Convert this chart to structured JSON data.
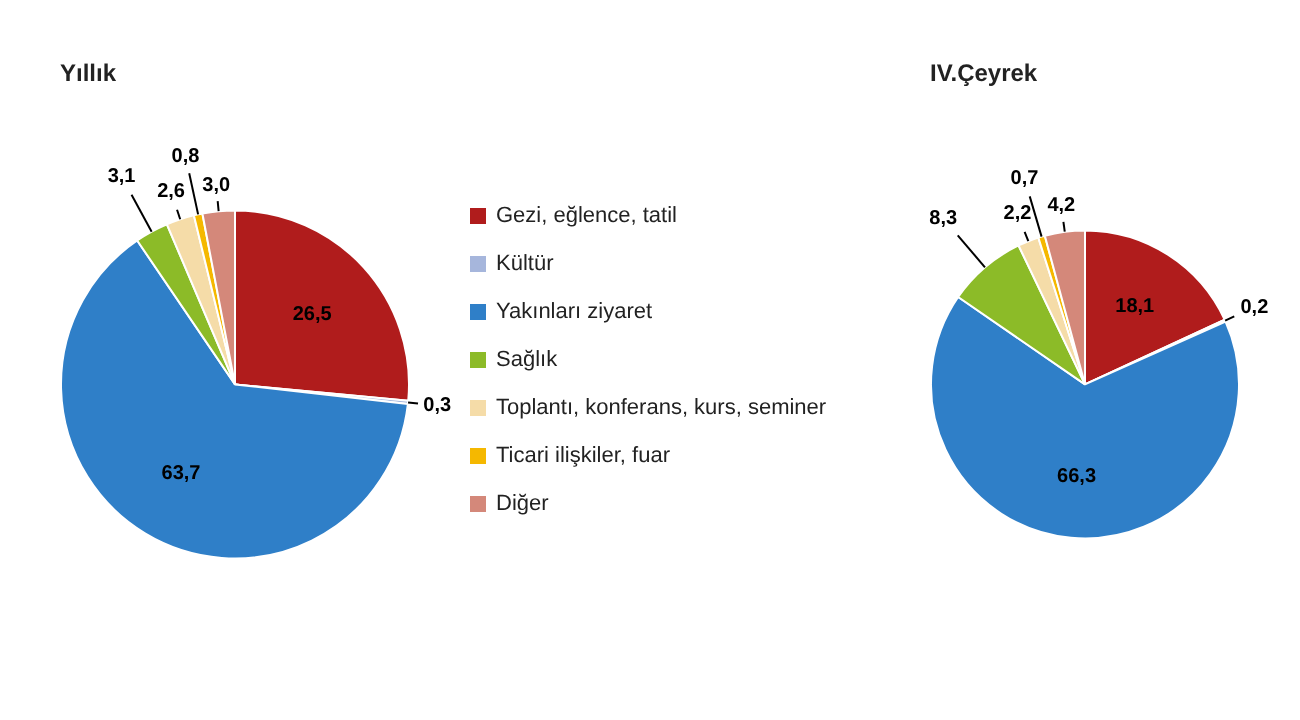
{
  "chart_data": [
    {
      "type": "pie",
      "title": "Yıllık",
      "categories": [
        "Gezi, eğlence, tatil",
        "Kültür",
        "Yakınları ziyaret",
        "Sağlık",
        "Toplantı, konferans, kurs, seminer",
        "Ticari ilişkiler,  fuar",
        "Diğer"
      ],
      "values": [
        26.5,
        0.3,
        63.7,
        3.1,
        2.6,
        0.8,
        3.0
      ],
      "value_labels": [
        "26,5",
        "0,3",
        "63,7",
        "3,1",
        "2,6",
        "0,8",
        "3,0"
      ],
      "colors": [
        "#b01c1c",
        "#a6b6dc",
        "#2f7fc8",
        "#8cbb28",
        "#f5dca8",
        "#f5b800",
        "#d4887a"
      ],
      "legend": "right"
    },
    {
      "type": "pie",
      "title": "IV.Çeyrek",
      "categories": [
        null,
        null,
        null,
        null,
        null,
        null,
        null
      ],
      "values": [
        18.1,
        0.2,
        66.3,
        8.3,
        2.2,
        0.7,
        4.2
      ],
      "value_labels": [
        "18,1",
        "0,2",
        "66,3",
        "8,3",
        "2,2",
        "0,7",
        "4,2"
      ],
      "colors": [
        "#b01c1c",
        "#a6b6dc",
        "#2f7fc8",
        "#8cbb28",
        "#f5dca8",
        "#f5b800",
        "#d4887a"
      ]
    }
  ]
}
